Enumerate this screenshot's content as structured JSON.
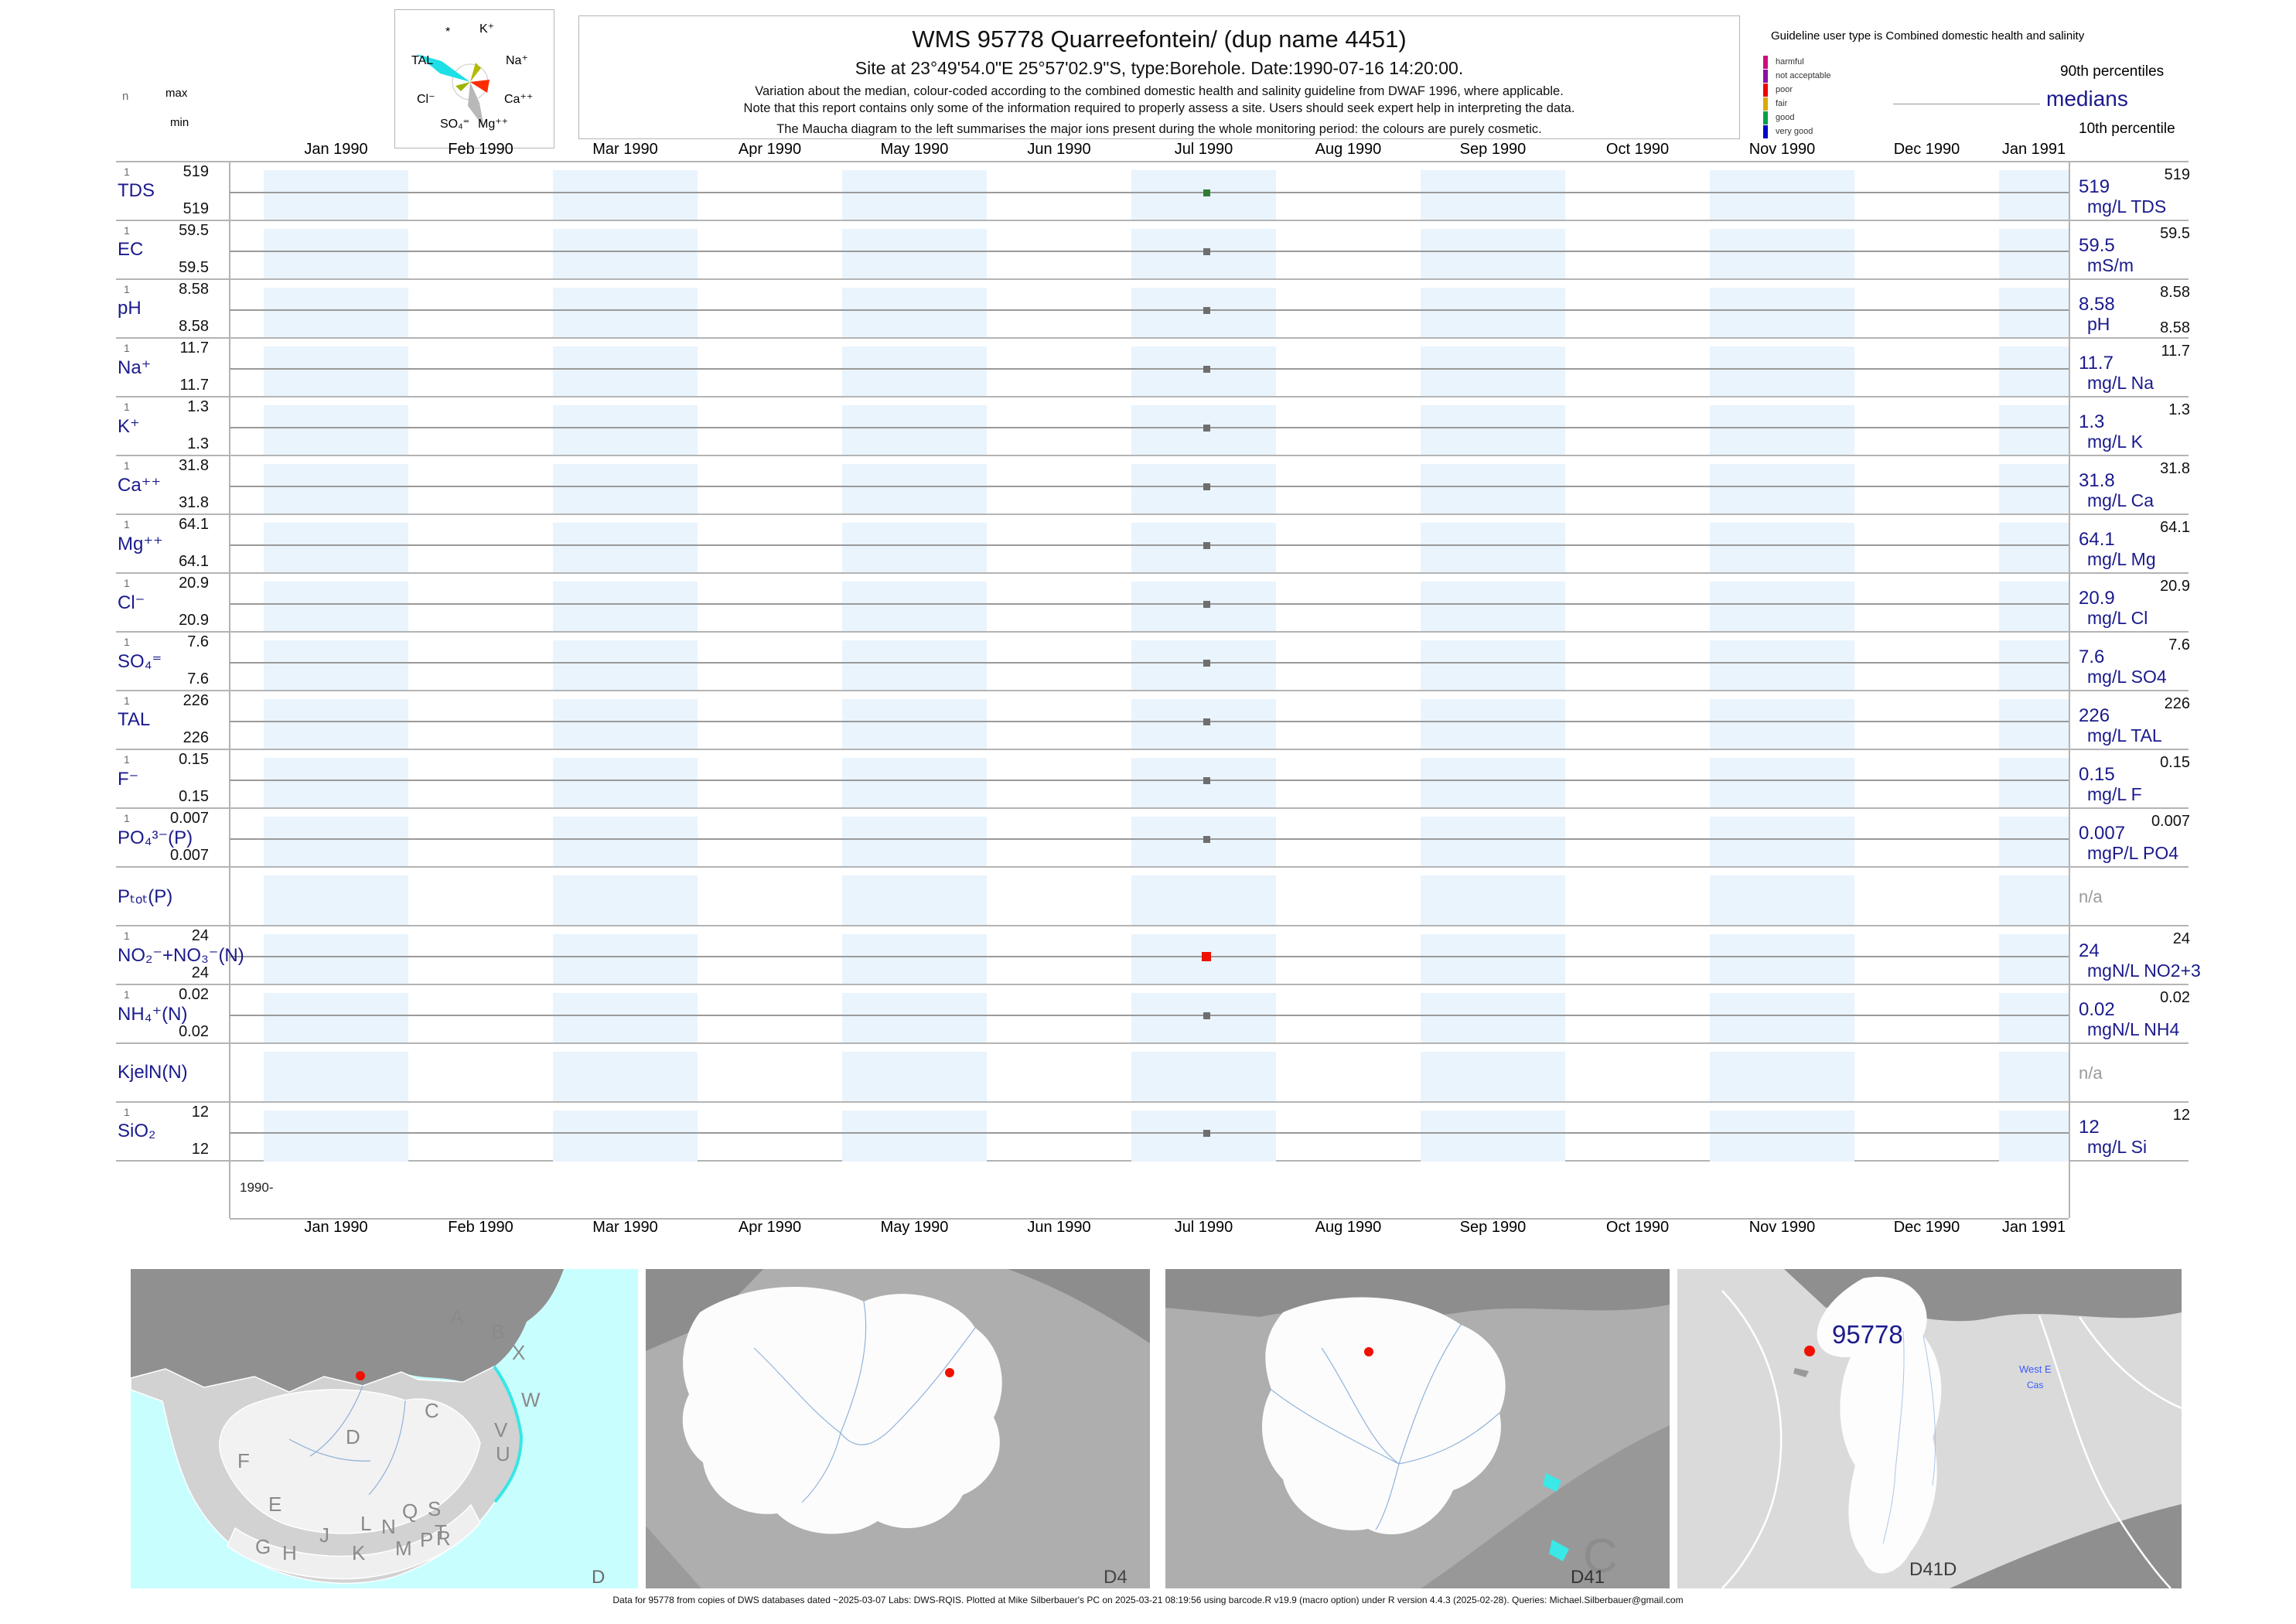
{
  "header": {
    "title": "WMS 95778  Quarreefontein/ (dup name 4451)",
    "subtitle": "Site at 23°49'54.0\"E 25°57'02.9\"S, type:Borehole. Date:1990-07-16 14:20:00.",
    "note1": "Variation about the median,  colour-coded according to the combined domestic health and salinity guideline from DWAF 1996, where applicable.",
    "note2": "Note that this report contains only some of the information required to properly assess a site. Users should seek expert help in interpreting the data.",
    "note3": "The Maucha diagram to the left summarises the major ions present during the whole monitoring period: the colours are purely cosmetic."
  },
  "maucha": {
    "labels": [
      "*",
      "K⁺",
      "TAL",
      "Na⁺",
      "Cl⁻",
      "Ca⁺⁺",
      "SO₄⁼",
      "Mg⁺⁺"
    ]
  },
  "guideline_legend": {
    "title": "Guideline user type is Combined domestic health and salinity",
    "classes": [
      {
        "label": "harmful",
        "color": "#cf0e7e"
      },
      {
        "label": "not acceptable",
        "color": "#8b10a0"
      },
      {
        "label": "poor",
        "color": "#f00000"
      },
      {
        "label": "fair",
        "color": "#d9a900"
      },
      {
        "label": "good",
        "color": "#00a04a"
      },
      {
        "label": "very good",
        "color": "#0008c8"
      }
    ],
    "p90": "90th percentiles",
    "median": "medians",
    "p10": "10th percentile"
  },
  "axis": {
    "n_header": "n",
    "max_header": "max",
    "min_header": "min",
    "start_label": "1990-",
    "months": [
      "Jan 1990",
      "Feb 1990",
      "Mar 1990",
      "Apr 1990",
      "May 1990",
      "Jun 1990",
      "Jul 1990",
      "Aug 1990",
      "Sep 1990",
      "Oct 1990",
      "Nov 1990",
      "Dec 1990",
      "Jan 1991"
    ]
  },
  "rows": [
    {
      "name": "TDS",
      "n": "1",
      "max": "519",
      "min": "519",
      "p90": "519",
      "median": "519",
      "unit": "mg/L TDS",
      "dot": "green"
    },
    {
      "name": "EC",
      "n": "1",
      "max": "59.5",
      "min": "59.5",
      "p90": "59.5",
      "median": "59.5",
      "unit": "mS/m",
      "dot": "gray"
    },
    {
      "name": "pH",
      "n": "1",
      "max": "8.58",
      "min": "8.58",
      "p90": "8.58",
      "median": "8.58",
      "p10": "8.58",
      "unit": "pH",
      "dot": "gray"
    },
    {
      "name": "Na⁺",
      "n": "1",
      "max": "11.7",
      "min": "11.7",
      "p90": "11.7",
      "median": "11.7",
      "unit": "mg/L Na",
      "dot": "gray"
    },
    {
      "name": "K⁺",
      "n": "1",
      "max": "1.3",
      "min": "1.3",
      "p90": "1.3",
      "median": "1.3",
      "unit": "mg/L K",
      "dot": "gray"
    },
    {
      "name": "Ca⁺⁺",
      "n": "1",
      "max": "31.8",
      "min": "31.8",
      "p90": "31.8",
      "median": "31.8",
      "unit": "mg/L Ca",
      "dot": "gray"
    },
    {
      "name": "Mg⁺⁺",
      "n": "1",
      "max": "64.1",
      "min": "64.1",
      "p90": "64.1",
      "median": "64.1",
      "unit": "mg/L Mg",
      "dot": "gray"
    },
    {
      "name": "Cl⁻",
      "n": "1",
      "max": "20.9",
      "min": "20.9",
      "p90": "20.9",
      "median": "20.9",
      "unit": "mg/L Cl",
      "dot": "gray"
    },
    {
      "name": "SO₄⁼",
      "n": "1",
      "max": "7.6",
      "min": "7.6",
      "p90": "7.6",
      "median": "7.6",
      "unit": "mg/L SO4",
      "dot": "gray"
    },
    {
      "name": "TAL",
      "n": "1",
      "max": "226",
      "min": "226",
      "p90": "226",
      "median": "226",
      "unit": "mg/L TAL",
      "dot": "gray"
    },
    {
      "name": "F⁻",
      "n": "1",
      "max": "0.15",
      "min": "0.15",
      "p90": "0.15",
      "median": "0.15",
      "unit": "mg/L F",
      "dot": "gray"
    },
    {
      "name": "PO₄³⁻(P)",
      "n": "1",
      "max": "0.007",
      "min": "0.007",
      "p90": "0.007",
      "median": "0.007",
      "unit": "mgP/L PO4",
      "dot": "gray"
    },
    {
      "name": "Pₜₒₜ(P)",
      "na": "n/a"
    },
    {
      "name": "NO₂⁻+NO₃⁻(N)",
      "n": "1",
      "max": "24",
      "min": "24",
      "p90": "24",
      "median": "24",
      "unit": "mgN/L NO2+3",
      "dot": "red"
    },
    {
      "name": "NH₄⁺(N)",
      "n": "1",
      "max": "0.02",
      "min": "0.02",
      "p90": "0.02",
      "median": "0.02",
      "unit": "mgN/L NH4",
      "dot": "gray"
    },
    {
      "name": "KjelN(N)",
      "na": "n/a"
    },
    {
      "name": "SiO₂",
      "n": "1",
      "max": "12",
      "min": "12",
      "p90": "12",
      "median": "12",
      "unit": "mg/L Si",
      "dot": "gray"
    }
  ],
  "colors": {
    "navy": "#1a1a8c",
    "stripe": "#e9f4fd",
    "grid": "#b4b4b4",
    "median_line": "#9a9a9a",
    "dot_gray": "#6e6e6e",
    "dot_green": "#2e7d32",
    "dot_red": "#ee1100"
  },
  "maps": {
    "panel1_label": "D",
    "panel2_label": "D4",
    "panel3_label": "D41",
    "panel3_big_letter": "C",
    "panel4_label": "D41D",
    "site_label": "95778",
    "west_label": "West E",
    "cas_label": "Cas",
    "region_letters": [
      "A",
      "B",
      "X",
      "W",
      "V",
      "U",
      "C",
      "D",
      "F",
      "E",
      "G",
      "H",
      "J",
      "K",
      "L",
      "N",
      "M",
      "P",
      "Q",
      "S",
      "T",
      "R"
    ]
  },
  "footer": "Data for 95778 from copies of DWS databases dated ~2025-03-07 Labs: DWS-RQIS. Plotted at Mike Silberbauer's PC on 2025-03-21 08:19:56 using barcode.R v19.9 (macro option) under R version 4.4.3 (2025-02-28). Queries: Michael.Silberbauer@gmail.com",
  "chart_data": {
    "type": "table",
    "title": "WMS 95778 Quarreefontein/ (dup name 4451)",
    "x_axis": {
      "start": "Jan 1990",
      "end": "Jan 1991",
      "tick_labels": [
        "Jan 1990",
        "Feb 1990",
        "Mar 1990",
        "Apr 1990",
        "May 1990",
        "Jun 1990",
        "Jul 1990",
        "Aug 1990",
        "Sep 1990",
        "Oct 1990",
        "Nov 1990",
        "Dec 1990",
        "Jan 1991"
      ]
    },
    "sample_date": "1990-07-16",
    "rows": [
      {
        "parameter": "TDS",
        "n": 1,
        "max": 519,
        "min": 519,
        "p90": 519,
        "median": 519,
        "unit": "mg/L TDS",
        "status_color": "green"
      },
      {
        "parameter": "EC",
        "n": 1,
        "max": 59.5,
        "min": 59.5,
        "p90": 59.5,
        "median": 59.5,
        "unit": "mS/m",
        "status_color": "gray"
      },
      {
        "parameter": "pH",
        "n": 1,
        "max": 8.58,
        "min": 8.58,
        "p90": 8.58,
        "median": 8.58,
        "p10": 8.58,
        "unit": "pH",
        "status_color": "gray"
      },
      {
        "parameter": "Na",
        "n": 1,
        "max": 11.7,
        "min": 11.7,
        "p90": 11.7,
        "median": 11.7,
        "unit": "mg/L Na",
        "status_color": "gray"
      },
      {
        "parameter": "K",
        "n": 1,
        "max": 1.3,
        "min": 1.3,
        "p90": 1.3,
        "median": 1.3,
        "unit": "mg/L K",
        "status_color": "gray"
      },
      {
        "parameter": "Ca",
        "n": 1,
        "max": 31.8,
        "min": 31.8,
        "p90": 31.8,
        "median": 31.8,
        "unit": "mg/L Ca",
        "status_color": "gray"
      },
      {
        "parameter": "Mg",
        "n": 1,
        "max": 64.1,
        "min": 64.1,
        "p90": 64.1,
        "median": 64.1,
        "unit": "mg/L Mg",
        "status_color": "gray"
      },
      {
        "parameter": "Cl",
        "n": 1,
        "max": 20.9,
        "min": 20.9,
        "p90": 20.9,
        "median": 20.9,
        "unit": "mg/L Cl",
        "status_color": "gray"
      },
      {
        "parameter": "SO4",
        "n": 1,
        "max": 7.6,
        "min": 7.6,
        "p90": 7.6,
        "median": 7.6,
        "unit": "mg/L SO4",
        "status_color": "gray"
      },
      {
        "parameter": "TAL",
        "n": 1,
        "max": 226,
        "min": 226,
        "p90": 226,
        "median": 226,
        "unit": "mg/L TAL",
        "status_color": "gray"
      },
      {
        "parameter": "F",
        "n": 1,
        "max": 0.15,
        "min": 0.15,
        "p90": 0.15,
        "median": 0.15,
        "unit": "mg/L F",
        "status_color": "gray"
      },
      {
        "parameter": "PO4(P)",
        "n": 1,
        "max": 0.007,
        "min": 0.007,
        "p90": 0.007,
        "median": 0.007,
        "unit": "mgP/L PO4",
        "status_color": "gray"
      },
      {
        "parameter": "Ptot(P)",
        "value": "n/a"
      },
      {
        "parameter": "NO2+NO3(N)",
        "n": 1,
        "max": 24,
        "min": 24,
        "p90": 24,
        "median": 24,
        "unit": "mgN/L NO2+3",
        "status_color": "red"
      },
      {
        "parameter": "NH4(N)",
        "n": 1,
        "max": 0.02,
        "min": 0.02,
        "p90": 0.02,
        "median": 0.02,
        "unit": "mgN/L NH4",
        "status_color": "gray"
      },
      {
        "parameter": "KjelN(N)",
        "value": "n/a"
      },
      {
        "parameter": "SiO2",
        "n": 1,
        "max": 12,
        "min": 12,
        "p90": 12,
        "median": 12,
        "unit": "mg/L Si",
        "status_color": "gray"
      }
    ]
  }
}
